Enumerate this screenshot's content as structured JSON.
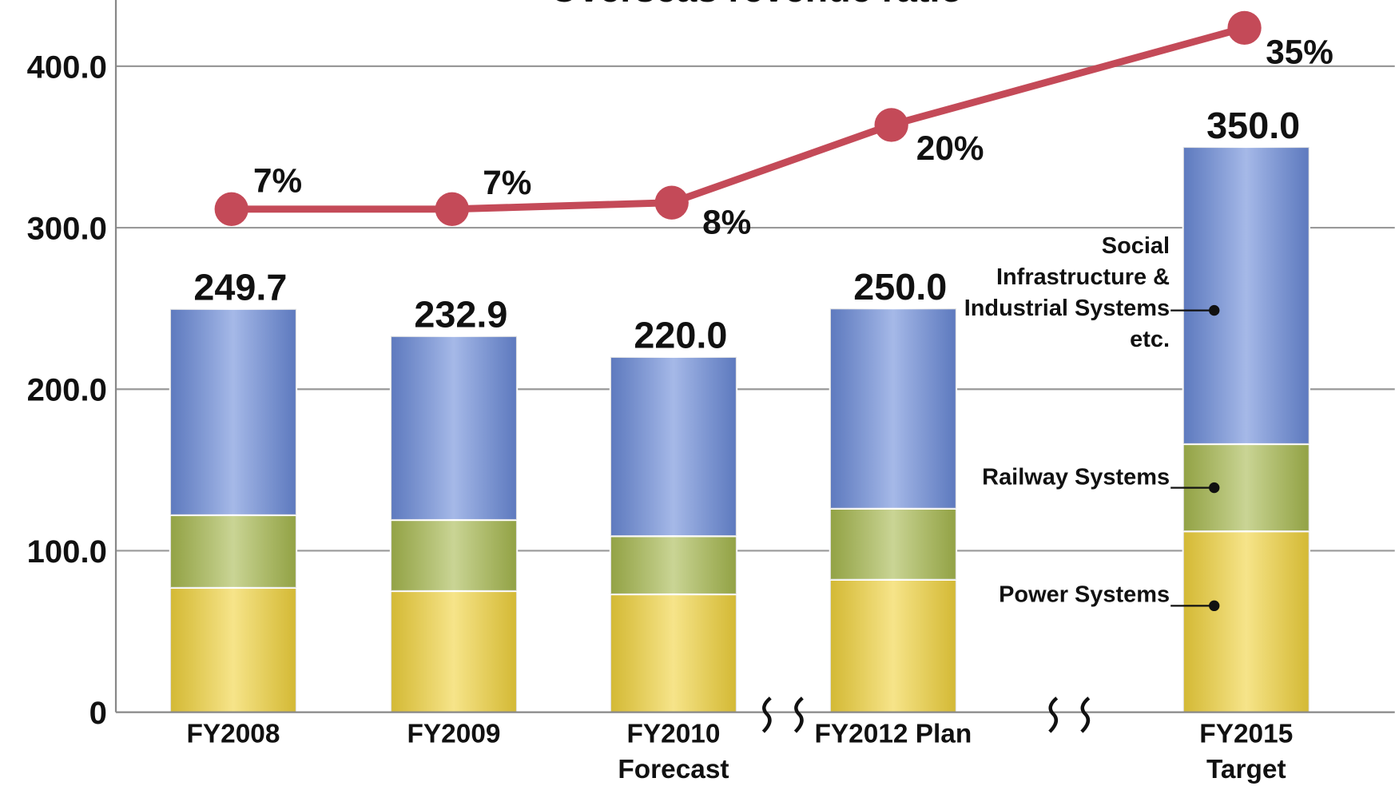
{
  "chart_data": {
    "type": "bar",
    "title": "Overseas revenue ratio",
    "categories": [
      "FY2008",
      "FY2009",
      "FY2010 Forecast",
      "FY2012 Plan",
      "FY2015 Target"
    ],
    "series": [
      {
        "name": "Power Systems",
        "color": "#f0d23c",
        "values": [
          77,
          75,
          73,
          82,
          112
        ]
      },
      {
        "name": "Railway Systems",
        "color": "#a6b84e",
        "values": [
          45,
          44,
          36,
          44,
          54
        ]
      },
      {
        "name": "Social Infrastructure & Industrial Systems etc.",
        "color": "#6a8ad8",
        "values": [
          127.7,
          113.9,
          111,
          124,
          184
        ]
      },
      {
        "name": "Overseas revenue ratio",
        "type": "line",
        "axis": "y2",
        "color": "#c44a58",
        "values": [
          7,
          7,
          8,
          20,
          35
        ],
        "value_labels": [
          "7%",
          "7%",
          "8%",
          "20%",
          "35%"
        ]
      }
    ],
    "totals": [
      249.7,
      232.9,
      220,
      250,
      350
    ],
    "total_labels": [
      "249.7",
      "232.9",
      "220.0",
      "250.0",
      "350.0"
    ],
    "ylim": [
      0,
      441
    ],
    "yticks": [
      0,
      {
        "value": 100,
        "label": "100.0"
      },
      {
        "value": 200,
        "label": "200.0"
      },
      {
        "value": 300,
        "label": "300.0"
      },
      {
        "value": 400,
        "label": "400.0"
      }
    ],
    "y2lim": [
      -70.7,
      39.3
    ],
    "grid": true
  }
}
